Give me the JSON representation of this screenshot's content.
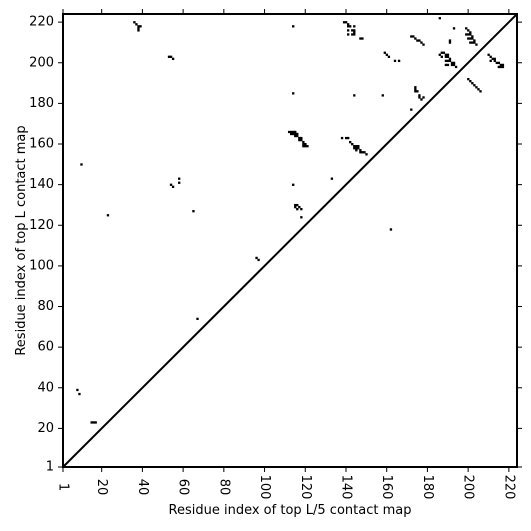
{
  "chart_data": {
    "type": "scatter",
    "title": "",
    "xlabel": "Residue index of top L/5 contact map",
    "ylabel": "Residue index of top L contact map",
    "xlim": [
      1,
      224
    ],
    "ylim": [
      1,
      224
    ],
    "x_ticks": [
      1,
      20,
      40,
      60,
      80,
      100,
      120,
      140,
      160,
      180,
      200,
      220
    ],
    "y_ticks": [
      1,
      20,
      40,
      60,
      80,
      100,
      120,
      140,
      160,
      180,
      200,
      220
    ],
    "diagonal": true,
    "grid": false,
    "marker_color": "#000000",
    "points": [
      [
        10,
        150
      ],
      [
        8,
        39
      ],
      [
        9,
        37
      ],
      [
        15,
        23
      ],
      [
        16,
        23
      ],
      [
        17,
        23
      ],
      [
        23,
        125
      ],
      [
        36,
        220
      ],
      [
        37,
        219
      ],
      [
        38,
        218
      ],
      [
        38,
        217
      ],
      [
        38,
        216
      ],
      [
        39,
        218
      ],
      [
        53,
        203
      ],
      [
        54,
        203
      ],
      [
        55,
        202
      ],
      [
        54,
        140
      ],
      [
        55,
        139
      ],
      [
        58,
        143
      ],
      [
        58,
        141
      ],
      [
        65,
        127
      ],
      [
        67,
        74
      ],
      [
        96,
        104
      ],
      [
        97,
        103
      ],
      [
        114,
        218
      ],
      [
        114,
        185
      ],
      [
        114,
        140
      ],
      [
        115,
        130
      ],
      [
        116,
        130
      ],
      [
        115,
        129
      ],
      [
        116,
        128
      ],
      [
        117,
        129
      ],
      [
        118,
        128
      ],
      [
        118,
        124
      ],
      [
        112,
        166
      ],
      [
        113,
        166
      ],
      [
        114,
        166
      ],
      [
        115,
        166
      ],
      [
        113,
        165
      ],
      [
        114,
        165
      ],
      [
        115,
        165
      ],
      [
        116,
        165
      ],
      [
        115,
        164
      ],
      [
        116,
        164
      ],
      [
        117,
        163
      ],
      [
        118,
        163
      ],
      [
        117,
        162
      ],
      [
        118,
        162
      ],
      [
        119,
        161
      ],
      [
        119,
        160
      ],
      [
        120,
        160
      ],
      [
        119,
        159
      ],
      [
        120,
        159
      ],
      [
        121,
        159
      ],
      [
        133,
        143
      ],
      [
        138,
        163
      ],
      [
        140,
        163
      ],
      [
        141,
        163
      ],
      [
        142,
        161
      ],
      [
        143,
        160
      ],
      [
        144,
        159
      ],
      [
        145,
        159
      ],
      [
        146,
        159
      ],
      [
        144,
        158
      ],
      [
        145,
        158
      ],
      [
        146,
        158
      ],
      [
        145,
        157
      ],
      [
        147,
        157
      ],
      [
        147,
        156
      ],
      [
        148,
        156
      ],
      [
        149,
        156
      ],
      [
        150,
        155
      ],
      [
        139,
        220
      ],
      [
        140,
        220
      ],
      [
        141,
        219
      ],
      [
        141,
        218
      ],
      [
        142,
        218
      ],
      [
        141,
        216
      ],
      [
        143,
        216
      ],
      [
        144,
        216
      ],
      [
        144,
        215
      ],
      [
        143,
        214
      ],
      [
        144,
        214
      ],
      [
        141,
        214
      ],
      [
        144,
        218
      ],
      [
        147,
        212
      ],
      [
        148,
        212
      ],
      [
        144,
        184
      ],
      [
        158,
        184
      ],
      [
        159,
        205
      ],
      [
        160,
        204
      ],
      [
        161,
        203
      ],
      [
        162,
        118
      ],
      [
        164,
        201
      ],
      [
        166,
        201
      ],
      [
        172,
        213
      ],
      [
        173,
        213
      ],
      [
        174,
        212
      ],
      [
        175,
        211
      ],
      [
        176,
        211
      ],
      [
        177,
        210
      ],
      [
        178,
        209
      ],
      [
        172,
        177
      ],
      [
        174,
        188
      ],
      [
        174,
        187
      ],
      [
        174,
        186
      ],
      [
        175,
        186
      ],
      [
        176,
        184
      ],
      [
        176,
        183
      ],
      [
        177,
        182
      ],
      [
        178,
        183
      ],
      [
        186,
        222
      ],
      [
        186,
        204
      ],
      [
        187,
        205
      ],
      [
        188,
        205
      ],
      [
        189,
        204
      ],
      [
        190,
        204
      ],
      [
        187,
        203
      ],
      [
        189,
        203
      ],
      [
        190,
        203
      ],
      [
        191,
        202
      ],
      [
        189,
        201
      ],
      [
        190,
        201
      ],
      [
        191,
        201
      ],
      [
        192,
        200
      ],
      [
        193,
        200
      ],
      [
        189,
        199
      ],
      [
        190,
        199
      ],
      [
        192,
        199
      ],
      [
        193,
        199
      ],
      [
        194,
        198
      ],
      [
        191,
        210
      ],
      [
        191,
        211
      ],
      [
        193,
        217
      ],
      [
        199,
        217
      ],
      [
        200,
        216
      ],
      [
        201,
        215
      ],
      [
        199,
        214
      ],
      [
        200,
        214
      ],
      [
        201,
        214
      ],
      [
        202,
        213
      ],
      [
        200,
        212
      ],
      [
        201,
        212
      ],
      [
        202,
        212
      ],
      [
        203,
        211
      ],
      [
        201,
        210
      ],
      [
        202,
        210
      ],
      [
        203,
        210
      ],
      [
        204,
        209
      ],
      [
        200,
        192
      ],
      [
        201,
        191
      ],
      [
        202,
        190
      ],
      [
        203,
        189
      ],
      [
        204,
        188
      ],
      [
        205,
        187
      ],
      [
        206,
        186
      ],
      [
        210,
        204
      ],
      [
        211,
        203
      ],
      [
        212,
        202
      ],
      [
        213,
        202
      ],
      [
        211,
        201
      ],
      [
        213,
        201
      ],
      [
        214,
        200
      ],
      [
        215,
        200
      ],
      [
        216,
        199
      ],
      [
        217,
        199
      ],
      [
        215,
        198
      ],
      [
        216,
        198
      ],
      [
        217,
        198
      ]
    ]
  }
}
